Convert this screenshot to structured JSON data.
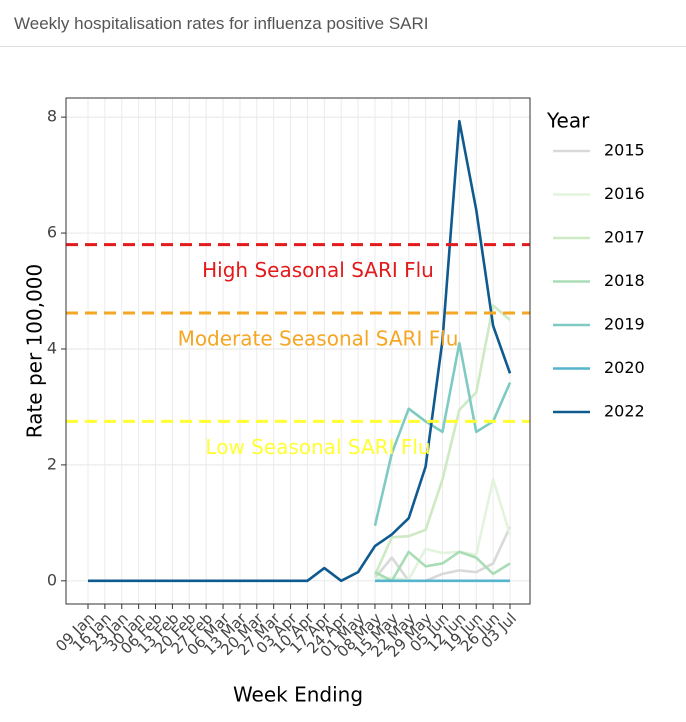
{
  "header": {
    "title": "Weekly hospitalisation rates for influenza positive SARI"
  },
  "chart_data": {
    "type": "line",
    "x_label": "Week Ending",
    "y_label": "Rate per 100,000",
    "legend_title": "Year",
    "categories": [
      "09 Jan",
      "16 Jan",
      "23 Jan",
      "30 Jan",
      "06 Feb",
      "13 Feb",
      "20 Feb",
      "27 Feb",
      "06 Mar",
      "13 Mar",
      "20 Mar",
      "27 Mar",
      "03 Apr",
      "10 Apr",
      "17 Apr",
      "24 Apr",
      "01 May",
      "08 May",
      "15 May",
      "22 May",
      "29 May",
      "05 Jun",
      "12 Jun",
      "19 Jun",
      "26 Jun",
      "03 Jul"
    ],
    "series": [
      {
        "name": "2015",
        "color": "#d9d9d9",
        "values": [
          null,
          null,
          null,
          null,
          null,
          null,
          null,
          null,
          null,
          null,
          null,
          null,
          null,
          null,
          null,
          null,
          null,
          0.05,
          0.4,
          0,
          0,
          0.12,
          0.18,
          0.15,
          0.3,
          0.93
        ]
      },
      {
        "name": "2016",
        "color": "#e3f4de",
        "values": [
          null,
          null,
          null,
          null,
          null,
          null,
          null,
          null,
          null,
          null,
          null,
          null,
          null,
          null,
          null,
          null,
          null,
          0.05,
          0.05,
          0.02,
          0.55,
          0.48,
          0.5,
          0.45,
          1.75,
          0.8
        ]
      },
      {
        "name": "2017",
        "color": "#cdeac5",
        "values": [
          null,
          null,
          null,
          null,
          null,
          null,
          null,
          null,
          null,
          null,
          null,
          null,
          null,
          null,
          null,
          null,
          null,
          0.1,
          0.75,
          0.77,
          0.88,
          1.75,
          2.95,
          3.25,
          4.75,
          4.5
        ]
      },
      {
        "name": "2018",
        "color": "#a8ddb5",
        "values": [
          null,
          null,
          null,
          null,
          null,
          null,
          null,
          null,
          null,
          null,
          null,
          null,
          null,
          null,
          null,
          null,
          null,
          0.15,
          0,
          0.5,
          0.25,
          0.3,
          0.5,
          0.4,
          0.12,
          0.3
        ]
      },
      {
        "name": "2019",
        "color": "#7fcbc4",
        "values": [
          null,
          null,
          null,
          null,
          null,
          null,
          null,
          null,
          null,
          null,
          null,
          null,
          null,
          null,
          null,
          null,
          null,
          0.95,
          2.2,
          2.97,
          2.75,
          2.57,
          4.1,
          2.57,
          2.75,
          3.42
        ]
      },
      {
        "name": "2020",
        "color": "#56b4cf",
        "values": [
          null,
          null,
          null,
          null,
          null,
          null,
          null,
          null,
          null,
          null,
          null,
          null,
          null,
          null,
          null,
          null,
          null,
          0,
          0,
          0,
          0,
          0,
          0,
          0,
          0,
          0
        ]
      },
      {
        "name": "2022",
        "color": "#0f5a8f",
        "values": [
          0,
          0,
          0,
          0,
          0,
          0,
          0,
          0,
          0,
          0,
          0,
          0,
          0,
          0,
          0.22,
          0,
          0.15,
          0.6,
          0.8,
          1.08,
          1.97,
          4.15,
          7.93,
          6.4,
          4.4,
          3.58
        ]
      }
    ],
    "annotations": [
      {
        "text": "High Seasonal SARI Flu",
        "y": 5.8,
        "color": "#e31a1c"
      },
      {
        "text": "Moderate Seasonal SARI Flu",
        "y": 4.62,
        "color": "#f5a623"
      },
      {
        "text": "Low Seasonal SARI Flu",
        "y": 2.75,
        "color": "#ffff33"
      }
    ],
    "ylim": [
      -0.4,
      8.33
    ],
    "yticks": [
      0,
      2,
      4,
      6,
      8
    ],
    "grid": true
  }
}
